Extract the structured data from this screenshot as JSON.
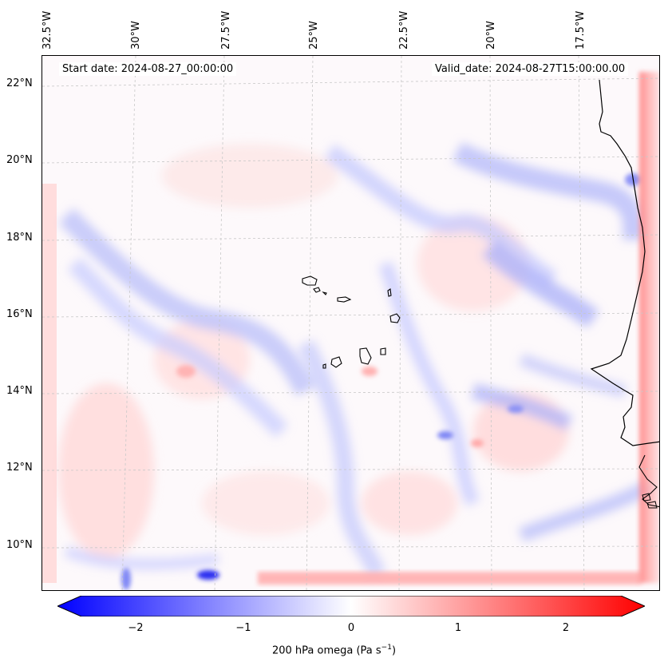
{
  "map": {
    "start_date": "Start date: 2024-08-27_00:00:00",
    "valid_date": "Valid_date: 2024-08-27T15:00:00.00",
    "lon_ticks": [
      "32.5°W",
      "30°W",
      "27.5°W",
      "25°W",
      "22.5°W",
      "20°W",
      "17.5°W"
    ],
    "lat_ticks": [
      "22°N",
      "20°N",
      "18°N",
      "16°N",
      "14°N",
      "12°N",
      "10°N"
    ],
    "field": "200 hPa omega",
    "colors": {
      "negative": "#0000ff",
      "neutral": "#ffffff",
      "positive": "#ff0000",
      "coast": "#000000"
    }
  },
  "colorbar": {
    "ticks": [
      "−2",
      "−1",
      "0",
      "1",
      "2"
    ],
    "label_main": "200 hPa omega (Pa s",
    "label_sup": "−1",
    "label_end": ")"
  }
}
